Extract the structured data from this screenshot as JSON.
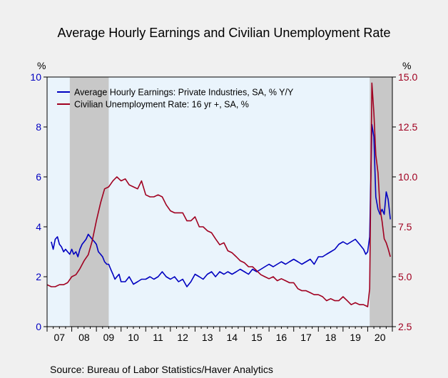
{
  "chart_data": {
    "type": "line",
    "title": "Average Hourly Earnings and Civilian Unemployment Rate",
    "source": "Source:  Bureau of Labor Statistics/Haver Analytics",
    "left_axis": {
      "unit": "%",
      "ylim": [
        0,
        10
      ],
      "ticks": [
        "0",
        "2",
        "4",
        "6",
        "8",
        "10"
      ],
      "color": "#0000c0"
    },
    "right_axis": {
      "unit": "%",
      "ylim": [
        2.5,
        15.0
      ],
      "ticks": [
        "2.5",
        "5.0",
        "7.5",
        "10.0",
        "12.5",
        "15.0"
      ],
      "color": "#a00020"
    },
    "x_axis": {
      "xlim": [
        2007.0,
        2021.0
      ],
      "ticks": [
        "07",
        "08",
        "09",
        "10",
        "11",
        "12",
        "13",
        "14",
        "15",
        "16",
        "17",
        "18",
        "19",
        "20"
      ]
    },
    "recessions": [
      [
        2007.92,
        2009.5
      ],
      [
        2020.08,
        2021.0
      ]
    ],
    "colors": {
      "plot_background": "#eaf4fc",
      "recession_shade": "#c8c8c8",
      "page_background": "#f0f0f0"
    },
    "grid": false,
    "legend_position": "top-left",
    "series": [
      {
        "name": "Average Hourly Earnings: Private Industries, SA, % Y/Y",
        "axis": "left",
        "color": "#0000c0",
        "x": [
          2007.17,
          2007.25,
          2007.33,
          2007.42,
          2007.5,
          2007.58,
          2007.67,
          2007.75,
          2007.83,
          2007.92,
          2008.0,
          2008.08,
          2008.17,
          2008.25,
          2008.33,
          2008.42,
          2008.5,
          2008.58,
          2008.67,
          2008.75,
          2008.83,
          2008.92,
          2009.0,
          2009.08,
          2009.17,
          2009.25,
          2009.33,
          2009.42,
          2009.5,
          2009.58,
          2009.67,
          2009.75,
          2009.83,
          2009.92,
          2010.0,
          2010.17,
          2010.33,
          2010.5,
          2010.67,
          2010.83,
          2011.0,
          2011.17,
          2011.33,
          2011.5,
          2011.67,
          2011.83,
          2012.0,
          2012.17,
          2012.33,
          2012.5,
          2012.67,
          2012.83,
          2013.0,
          2013.17,
          2013.33,
          2013.5,
          2013.67,
          2013.83,
          2014.0,
          2014.17,
          2014.33,
          2014.5,
          2014.67,
          2014.83,
          2015.0,
          2015.17,
          2015.33,
          2015.5,
          2015.67,
          2015.83,
          2016.0,
          2016.17,
          2016.33,
          2016.5,
          2016.67,
          2016.83,
          2017.0,
          2017.17,
          2017.33,
          2017.5,
          2017.67,
          2017.83,
          2018.0,
          2018.17,
          2018.33,
          2018.5,
          2018.67,
          2018.83,
          2019.0,
          2019.17,
          2019.33,
          2019.5,
          2019.67,
          2019.83,
          2019.92,
          2020.0,
          2020.08,
          2020.17,
          2020.25,
          2020.33,
          2020.42,
          2020.5,
          2020.58,
          2020.67,
          2020.75,
          2020.83,
          2020.92
        ],
        "values": [
          3.4,
          3.1,
          3.5,
          3.6,
          3.3,
          3.2,
          3.0,
          3.1,
          3.0,
          2.9,
          3.1,
          2.9,
          3.0,
          2.8,
          3.1,
          3.3,
          3.4,
          3.5,
          3.7,
          3.6,
          3.5,
          3.4,
          3.3,
          3.0,
          2.9,
          2.8,
          2.6,
          2.5,
          2.5,
          2.3,
          2.1,
          1.9,
          2.0,
          2.1,
          1.8,
          1.8,
          2.0,
          1.7,
          1.8,
          1.9,
          1.9,
          2.0,
          1.9,
          2.0,
          2.2,
          2.0,
          1.9,
          2.0,
          1.8,
          1.9,
          1.6,
          1.8,
          2.1,
          2.0,
          1.9,
          2.1,
          2.2,
          2.0,
          2.2,
          2.1,
          2.2,
          2.1,
          2.2,
          2.3,
          2.2,
          2.1,
          2.3,
          2.2,
          2.3,
          2.4,
          2.5,
          2.4,
          2.5,
          2.6,
          2.5,
          2.6,
          2.7,
          2.6,
          2.5,
          2.6,
          2.7,
          2.5,
          2.8,
          2.8,
          2.9,
          3.0,
          3.1,
          3.3,
          3.4,
          3.3,
          3.4,
          3.5,
          3.3,
          3.1,
          2.9,
          3.0,
          3.6,
          8.1,
          7.6,
          5.2,
          4.7,
          4.5,
          4.7,
          4.5,
          5.4,
          5.1,
          4.3
        ]
      },
      {
        "name": "Civilian Unemployment Rate: 16 yr +, SA, %",
        "axis": "right",
        "color": "#a00020",
        "x": [
          2007.0,
          2007.17,
          2007.33,
          2007.5,
          2007.67,
          2007.83,
          2008.0,
          2008.17,
          2008.33,
          2008.5,
          2008.67,
          2008.83,
          2009.0,
          2009.17,
          2009.33,
          2009.5,
          2009.67,
          2009.83,
          2010.0,
          2010.17,
          2010.33,
          2010.5,
          2010.67,
          2010.83,
          2011.0,
          2011.17,
          2011.33,
          2011.5,
          2011.67,
          2011.83,
          2012.0,
          2012.17,
          2012.33,
          2012.5,
          2012.67,
          2012.83,
          2013.0,
          2013.17,
          2013.33,
          2013.5,
          2013.67,
          2013.83,
          2014.0,
          2014.17,
          2014.33,
          2014.5,
          2014.67,
          2014.83,
          2015.0,
          2015.17,
          2015.33,
          2015.5,
          2015.67,
          2015.83,
          2016.0,
          2016.17,
          2016.33,
          2016.5,
          2016.67,
          2016.83,
          2017.0,
          2017.17,
          2017.33,
          2017.5,
          2017.67,
          2017.83,
          2018.0,
          2018.17,
          2018.33,
          2018.5,
          2018.67,
          2018.83,
          2019.0,
          2019.17,
          2019.33,
          2019.5,
          2019.67,
          2019.83,
          2020.0,
          2020.08,
          2020.17,
          2020.25,
          2020.33,
          2020.42,
          2020.5,
          2020.58,
          2020.67,
          2020.75,
          2020.83,
          2020.92
        ],
        "values": [
          4.6,
          4.5,
          4.5,
          4.6,
          4.6,
          4.7,
          5.0,
          5.1,
          5.4,
          5.8,
          6.1,
          6.8,
          7.8,
          8.7,
          9.4,
          9.5,
          9.8,
          10.0,
          9.8,
          9.9,
          9.6,
          9.5,
          9.4,
          9.8,
          9.1,
          9.0,
          9.0,
          9.1,
          9.0,
          8.6,
          8.3,
          8.2,
          8.2,
          8.2,
          7.8,
          7.8,
          8.0,
          7.5,
          7.5,
          7.3,
          7.2,
          6.9,
          6.6,
          6.7,
          6.3,
          6.2,
          6.0,
          5.8,
          5.7,
          5.5,
          5.5,
          5.3,
          5.1,
          5.0,
          4.9,
          5.0,
          4.8,
          4.9,
          4.8,
          4.7,
          4.7,
          4.4,
          4.3,
          4.3,
          4.2,
          4.1,
          4.1,
          4.0,
          3.8,
          3.9,
          3.8,
          3.8,
          4.0,
          3.8,
          3.6,
          3.7,
          3.6,
          3.6,
          3.5,
          4.4,
          14.7,
          13.2,
          11.1,
          10.2,
          8.4,
          7.8,
          6.9,
          6.7,
          6.4,
          6.0
        ]
      }
    ]
  }
}
